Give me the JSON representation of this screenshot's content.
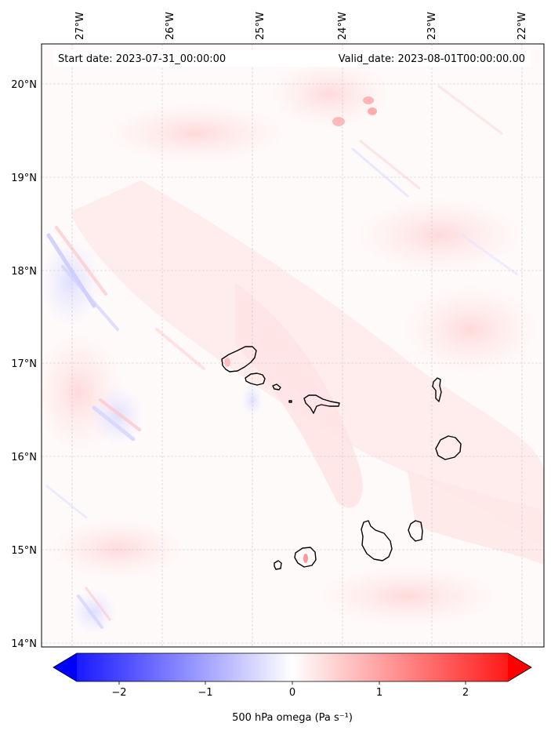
{
  "map": {
    "start_date_label": "Start date: 2023-07-31_00:00:00",
    "valid_date_label": "Valid_date: 2023-08-01T00:00:00.00",
    "lon_ticks": [
      "27°W",
      "26°W",
      "25°W",
      "24°W",
      "23°W",
      "22°W"
    ],
    "lat_ticks": [
      "20°N",
      "19°N",
      "18°N",
      "17°N",
      "16°N",
      "15°N",
      "14°N"
    ],
    "lon_range": [
      -27.35,
      -21.85
    ],
    "lat_range": [
      13.95,
      20.4
    ],
    "gridlines": true,
    "gridline_style": "dashed light gray",
    "features": [
      "Santo Antão",
      "São Vicente",
      "Santa Luzia",
      "São Nicolau",
      "Sal",
      "Boa Vista",
      "Maio",
      "Santiago",
      "Fogo",
      "Brava"
    ]
  },
  "colorbar": {
    "label": "500 hPa omega (Pa s⁻¹)",
    "ticks": [
      "−2",
      "−1",
      "0",
      "1",
      "2"
    ],
    "tick_values": [
      -2,
      -1,
      0,
      1,
      2
    ],
    "range": [
      -2.5,
      2.5
    ],
    "colormap": "bwr",
    "extend": "both",
    "color_low": "#0000ff",
    "color_mid": "#ffffff",
    "color_high": "#ff0000"
  }
}
